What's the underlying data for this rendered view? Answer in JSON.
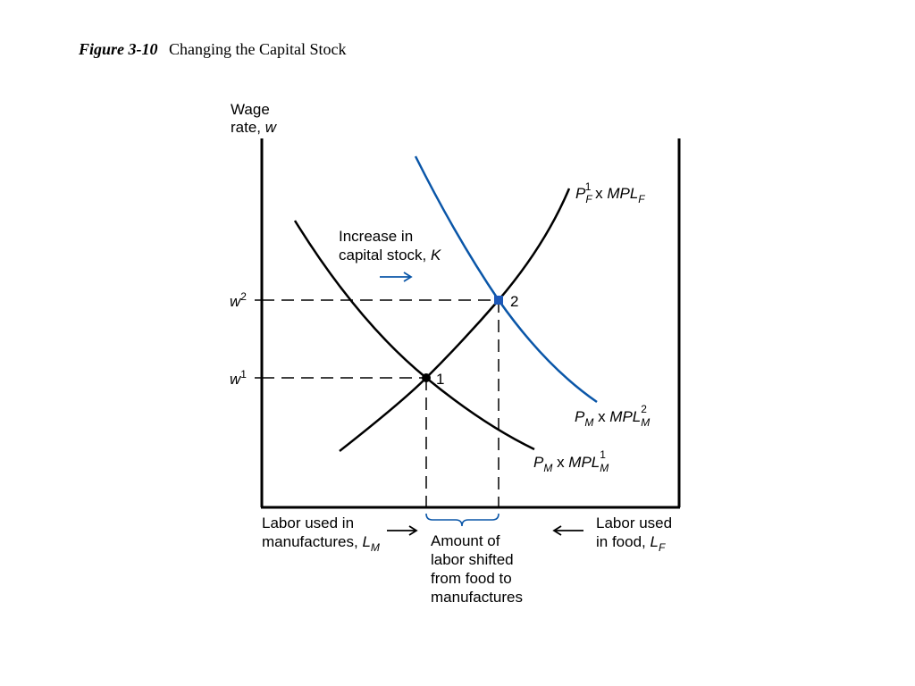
{
  "caption": {
    "figure_number": "Figure 3-10",
    "title": "Changing the Capital Stock"
  },
  "colors": {
    "curve": "#000000",
    "shifted_curve": "#0a56a8",
    "point_2": "#1d58b8",
    "point_1": "#000000"
  },
  "axes": {
    "y_label_line1": "Wage",
    "y_label_line2": "rate, ",
    "y_label_var": "w",
    "left_label_line1": "Labor used in",
    "left_label_line2": "manufactures, ",
    "left_label_var": "L",
    "left_label_sub": "M",
    "right_label_line1": "Labor used",
    "right_label_line2": "in food, ",
    "right_label_var": "L",
    "right_label_sub": "F",
    "arrow_right": "⟶",
    "arrow_left": "⟵"
  },
  "wages": {
    "w2": {
      "var": "w",
      "sup": "2"
    },
    "w1": {
      "var": "w",
      "sup": "1"
    }
  },
  "points": {
    "p1": "1",
    "p2": "2"
  },
  "curves": {
    "food": {
      "P": "P",
      "P_sub": "F",
      "P_sup": "1",
      "times": " x ",
      "mpl": "MPL",
      "mpl_sub": "F"
    },
    "mfg1": {
      "P": "P",
      "P_sub": "M",
      "times": " x ",
      "mpl": "MPL",
      "mpl_sub": "M",
      "mpl_sup": "1"
    },
    "mfg2": {
      "P": "P",
      "P_sub": "M",
      "times": " x ",
      "mpl": "MPL",
      "mpl_sub": "M",
      "mpl_sup": "2"
    }
  },
  "annotation": {
    "line1": "Increase in",
    "line2": "capital stock, ",
    "var": "K",
    "arrow": "⟶"
  },
  "shift_label": {
    "line1": "Amount of",
    "line2": "labor shifted",
    "line3": "from food to",
    "line4": "manufactures"
  }
}
